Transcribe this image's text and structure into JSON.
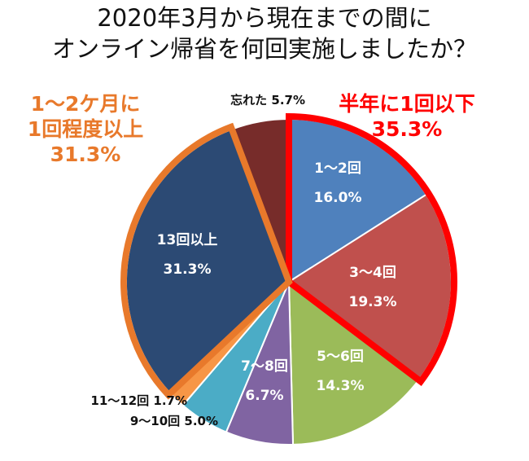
{
  "chart_data": {
    "type": "pie",
    "title_lines": [
      "2020年3月から現在までの間に",
      "オンライン帰省を何回実施しましたか？"
    ],
    "start": "top",
    "direction": "clockwise",
    "slices": [
      {
        "label": "1～2回",
        "value": 16.0,
        "value_label": "16.0%",
        "color": "#4F81BD"
      },
      {
        "label": "3～4回",
        "value": 19.3,
        "value_label": "19.3%",
        "color": "#C0504D"
      },
      {
        "label": "5～6回",
        "value": 14.3,
        "value_label": "14.3%",
        "color": "#9BBB59"
      },
      {
        "label": "7～8回",
        "value": 6.7,
        "value_label": "6.7%",
        "color": "#8064A2"
      },
      {
        "label": "9～10回",
        "value": 5.0,
        "value_label": "5.0%",
        "color": "#4BACC6"
      },
      {
        "label": "11～12回",
        "value": 1.7,
        "value_label": "1.7%",
        "color": "#F79646"
      },
      {
        "label": "13回以上",
        "value": 31.3,
        "value_label": "31.3%",
        "color": "#2C4A74"
      },
      {
        "label": "忘れた",
        "value": 5.7,
        "value_label": "5.7%",
        "color": "#772C2A"
      }
    ],
    "groups": [
      {
        "label_lines": [
          "半年に1回以下"
        ],
        "value_label": "35.3%",
        "slices": [
          0,
          1
        ],
        "color": "#FF0000"
      },
      {
        "label_lines": [
          "1～2ケ月に",
          "1回程度以上"
        ],
        "value_label": "31.3%",
        "slices": [
          6
        ],
        "color": "#E8792B"
      }
    ]
  }
}
